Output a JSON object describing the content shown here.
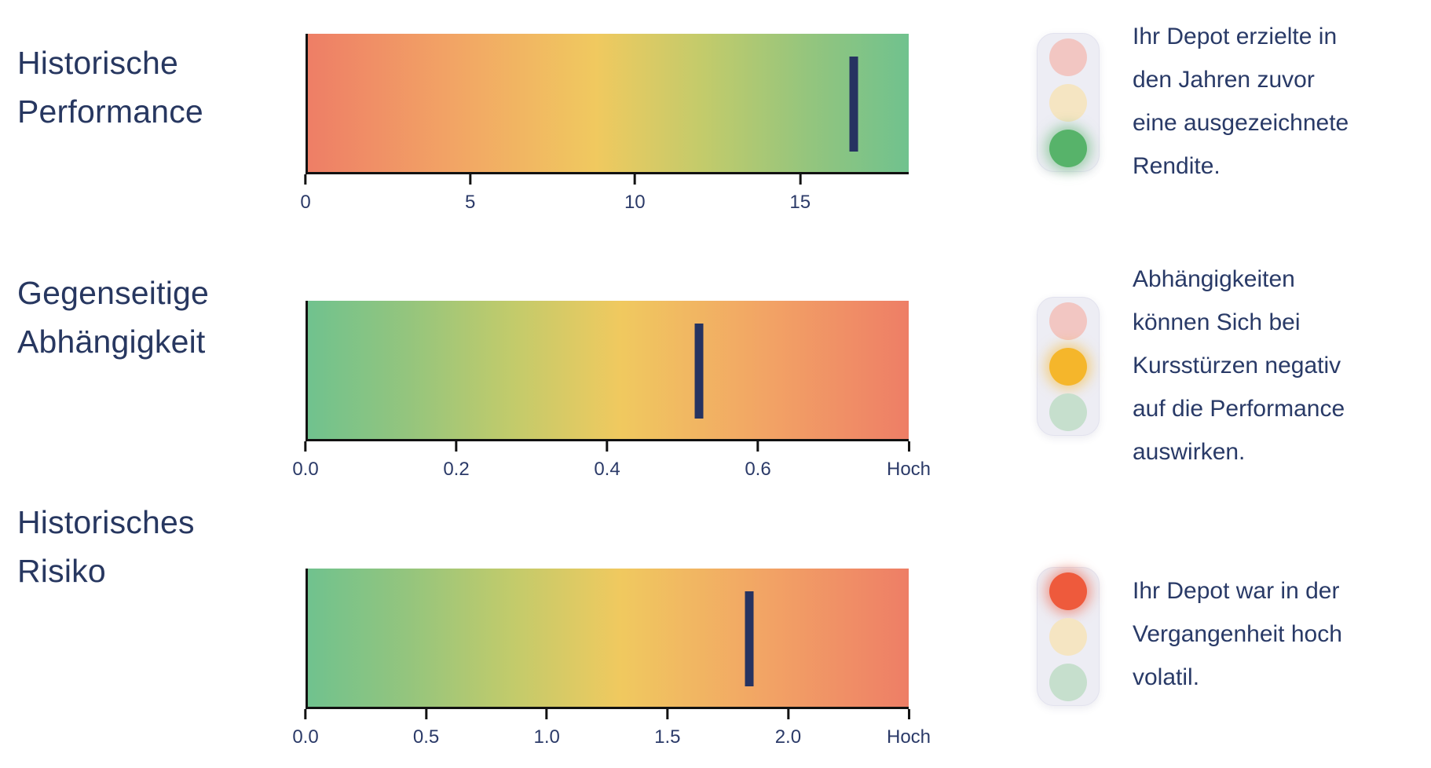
{
  "colors": {
    "text_navy": "#293a67",
    "label_navy": "#273760",
    "marker_navy": "#263361",
    "axis_black": "#121212",
    "gradient_red": "#ee7e66",
    "gradient_yellow": "#f0c95f",
    "gradient_green": "#70c28e",
    "light_red_on": "#ee5a3c",
    "light_yellow_on": "#f5b62b",
    "light_green_on": "#57b36a",
    "light_red_off": "#f2c6c2",
    "light_yellow_off": "#f5e5c2",
    "light_green_off": "#c6dfcd",
    "light_housing": "#ededf4"
  },
  "chart_data": [
    {
      "type": "bar",
      "subtype": "gradient_gauge",
      "label_lines": [
        "Historische",
        "Performance"
      ],
      "gradient_direction": "red_to_green",
      "axis": {
        "min": 0,
        "max": 18.3,
        "ticks": [
          {
            "value": 0,
            "label": "0",
            "pos_pct": 0
          },
          {
            "value": 5,
            "label": "5",
            "pos_pct": 27.3
          },
          {
            "value": 10,
            "label": "10",
            "pos_pct": 54.6
          },
          {
            "value": 15,
            "label": "15",
            "pos_pct": 82.0
          }
        ]
      },
      "marker": {
        "value": 16.6,
        "pos_pct": 90.8
      },
      "traffic_light": {
        "active": "green",
        "order": [
          "red",
          "yellow",
          "green"
        ]
      },
      "description_lines": [
        "Ihr Depot erzielte in",
        "den Jahren zuvor",
        "eine ausgezeichnete",
        "Rendite."
      ]
    },
    {
      "type": "bar",
      "subtype": "gradient_gauge",
      "label_lines": [
        "Gegenseitige",
        "Abhängigkeit"
      ],
      "gradient_direction": "green_to_red",
      "axis": {
        "min": 0,
        "max": 0.8,
        "ticks": [
          {
            "value": 0.0,
            "label": "0.0",
            "pos_pct": 0
          },
          {
            "value": 0.2,
            "label": "0.2",
            "pos_pct": 25
          },
          {
            "value": 0.4,
            "label": "0.4",
            "pos_pct": 50
          },
          {
            "value": 0.6,
            "label": "0.6",
            "pos_pct": 75
          },
          {
            "value": 0.8,
            "label": "Hoch",
            "pos_pct": 100
          }
        ]
      },
      "marker": {
        "value": 0.52,
        "pos_pct": 65.1
      },
      "traffic_light": {
        "active": "yellow",
        "order": [
          "red",
          "yellow",
          "green"
        ]
      },
      "description_lines": [
        "Abhängigkeiten",
        "können Sich bei",
        "Kursstürzen negativ",
        "auf die Performance",
        "auswirken."
      ]
    },
    {
      "type": "bar",
      "subtype": "gradient_gauge",
      "label_lines": [
        "Historisches",
        "Risiko"
      ],
      "gradient_direction": "green_to_red",
      "axis": {
        "min": 0,
        "max": 2.5,
        "ticks": [
          {
            "value": 0.0,
            "label": "0.0",
            "pos_pct": 0
          },
          {
            "value": 0.5,
            "label": "0.5",
            "pos_pct": 20
          },
          {
            "value": 1.0,
            "label": "1.0",
            "pos_pct": 40
          },
          {
            "value": 1.5,
            "label": "1.5",
            "pos_pct": 60
          },
          {
            "value": 2.0,
            "label": "2.0",
            "pos_pct": 80
          },
          {
            "value": 2.5,
            "label": "Hoch",
            "pos_pct": 100
          }
        ]
      },
      "marker": {
        "value": 1.85,
        "pos_pct": 73.5
      },
      "traffic_light": {
        "active": "red",
        "order": [
          "red",
          "yellow",
          "green"
        ]
      },
      "description_lines": [
        "Ihr Depot war in der",
        "Vergangenheit hoch",
        "volatil."
      ]
    }
  ]
}
